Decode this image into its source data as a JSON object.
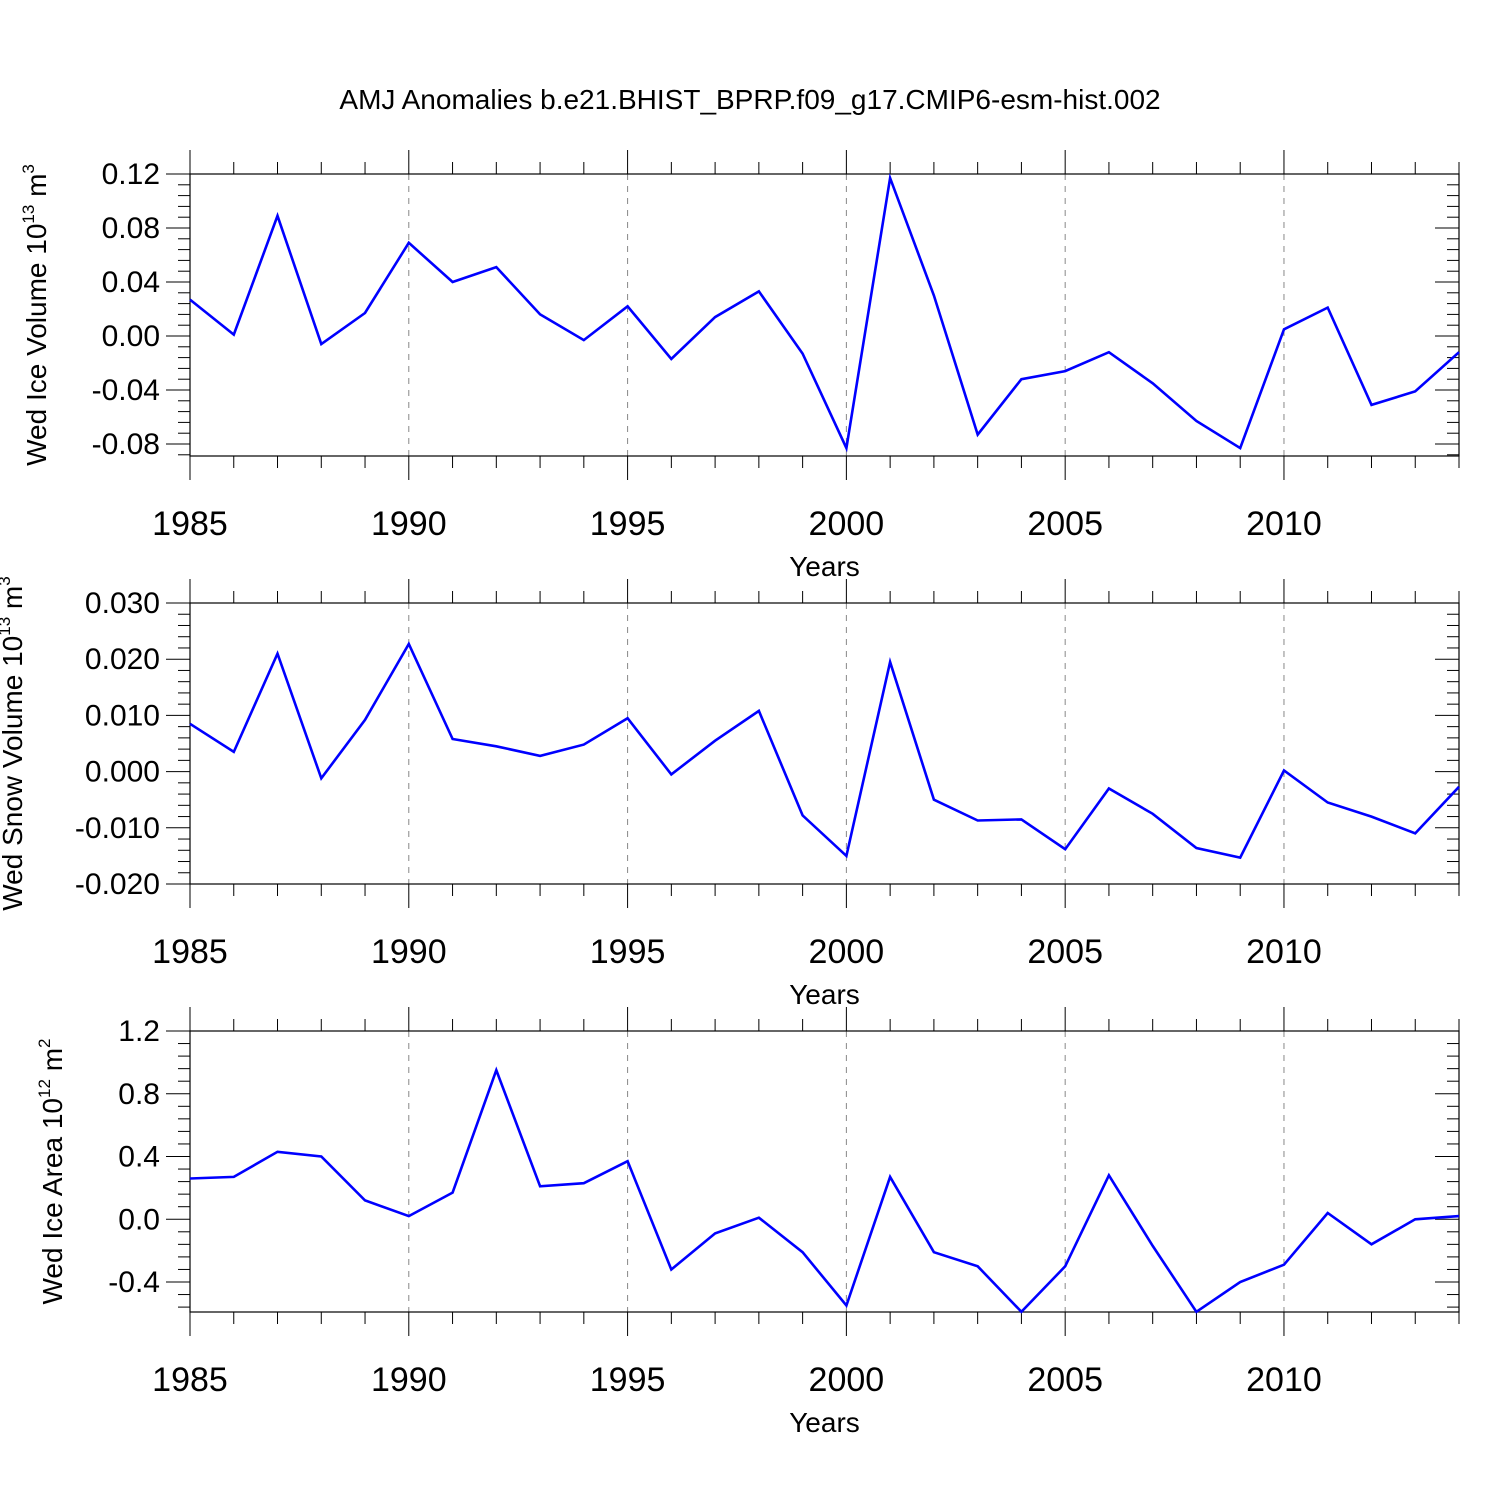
{
  "figure": {
    "title": "AMJ Anomalies b.e21.BHIST_BPRP.f09_g17.CMIP6-esm-hist.002",
    "line_color": "#0000ff",
    "grid_color": "#888888"
  },
  "chart_data": [
    {
      "type": "line",
      "title": "",
      "xlabel": "Years",
      "ylabel_main": "Wed Ice Volume 10",
      "ylabel_exp": "13",
      "ylabel_unit": " m",
      "ylabel_unit_exp": "3",
      "xlim": [
        1985,
        2014
      ],
      "ylim": [
        -0.09,
        0.12
      ],
      "x_ticks": [
        1985,
        1990,
        1995,
        2000,
        2005,
        2010
      ],
      "y_ticks": [
        -0.08,
        -0.04,
        0.0,
        0.04,
        0.08,
        0.12
      ],
      "y_tick_labels": [
        "-0.08",
        "-0.04",
        "0.00",
        "0.04",
        "0.08",
        "0.12"
      ],
      "grid": "vertical dashed at major x ticks",
      "series": [
        {
          "x": [
            1985,
            1986,
            1987,
            1988,
            1989,
            1990,
            1991,
            1992,
            1993,
            1994,
            1995,
            1996,
            1997,
            1998,
            1999,
            2000,
            2001,
            2002,
            2003,
            2004,
            2005,
            2006,
            2007,
            2008,
            2009,
            2010,
            2011,
            2012,
            2013,
            2014
          ],
          "values": [
            0.027,
            0.001,
            0.089,
            -0.006,
            0.017,
            0.069,
            0.04,
            0.051,
            0.016,
            -0.003,
            0.022,
            -0.017,
            0.014,
            0.033,
            -0.013,
            -0.083,
            0.117,
            0.03,
            -0.073,
            -0.032,
            -0.026,
            -0.012,
            -0.035,
            -0.063,
            -0.083,
            0.005,
            0.021,
            -0.051,
            -0.041,
            -0.012
          ]
        }
      ]
    },
    {
      "type": "line",
      "title": "",
      "xlabel": "Years",
      "ylabel_main": "Wed Snow Volume 10",
      "ylabel_exp": "13",
      "ylabel_unit": " m",
      "ylabel_unit_exp": "3",
      "xlim": [
        1985,
        2014
      ],
      "ylim": [
        -0.02,
        0.03
      ],
      "x_ticks": [
        1985,
        1990,
        1995,
        2000,
        2005,
        2010
      ],
      "y_ticks": [
        -0.02,
        -0.01,
        0.0,
        0.01,
        0.02,
        0.03
      ],
      "y_tick_labels": [
        "-0.020",
        "-0.010",
        "0.000",
        "0.010",
        "0.020",
        "0.030"
      ],
      "grid": "vertical dashed at major x ticks",
      "series": [
        {
          "x": [
            1985,
            1986,
            1987,
            1988,
            1989,
            1990,
            1991,
            1992,
            1993,
            1994,
            1995,
            1996,
            1997,
            1998,
            1999,
            2000,
            2001,
            2002,
            2003,
            2004,
            2005,
            2006,
            2007,
            2008,
            2009,
            2010,
            2011,
            2012,
            2013,
            2014
          ],
          "values": [
            0.0085,
            0.0035,
            0.021,
            -0.0012,
            0.0092,
            0.0227,
            0.0058,
            0.0045,
            0.0028,
            0.0048,
            0.0095,
            -0.0005,
            0.0055,
            0.0108,
            -0.0078,
            -0.015,
            0.0195,
            -0.005,
            -0.0087,
            -0.0085,
            -0.0138,
            -0.003,
            -0.0075,
            -0.0136,
            -0.0153,
            0.0002,
            -0.0055,
            -0.008,
            -0.011,
            -0.0027
          ]
        }
      ]
    },
    {
      "type": "line",
      "title": "",
      "xlabel": "Years",
      "ylabel_main": "Wed Ice Area 10",
      "ylabel_exp": "12",
      "ylabel_unit": " m",
      "ylabel_unit_exp": "2",
      "xlim": [
        1985,
        2014
      ],
      "ylim": [
        -0.6,
        1.2
      ],
      "x_ticks": [
        1985,
        1990,
        1995,
        2000,
        2005,
        2010
      ],
      "y_ticks": [
        -0.4,
        0.0,
        0.4,
        0.8,
        1.2
      ],
      "y_tick_labels": [
        "-0.4",
        "0.0",
        "0.4",
        "0.8",
        "1.2"
      ],
      "grid": "vertical dashed at major x ticks",
      "series": [
        {
          "x": [
            1985,
            1986,
            1987,
            1988,
            1989,
            1990,
            1991,
            1992,
            1993,
            1994,
            1995,
            1996,
            1997,
            1998,
            1999,
            2000,
            2001,
            2002,
            2003,
            2004,
            2005,
            2006,
            2007,
            2008,
            2009,
            2010,
            2011,
            2012,
            2013,
            2014
          ],
          "values": [
            0.26,
            0.27,
            0.43,
            0.4,
            0.12,
            0.02,
            0.17,
            0.95,
            0.21,
            0.23,
            0.37,
            -0.32,
            -0.09,
            0.01,
            -0.21,
            -0.55,
            0.27,
            -0.21,
            -0.3,
            -0.59,
            -0.3,
            0.28,
            -0.17,
            -0.59,
            -0.4,
            -0.29,
            0.04,
            -0.16,
            0.0,
            0.02
          ]
        }
      ]
    }
  ]
}
